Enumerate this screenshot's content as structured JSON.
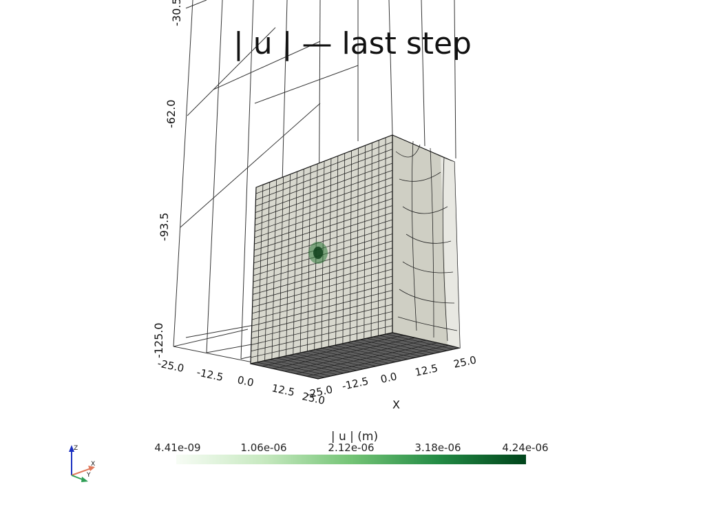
{
  "title": "| u |  — last step",
  "z_axis": {
    "ticks": [
      "-30.5",
      "-62.0",
      "-93.5",
      "-125.0"
    ]
  },
  "y_axis": {
    "ticks": [
      "-25.0",
      "-12.5",
      "0.0",
      "12.5",
      "25.0"
    ]
  },
  "x_axis": {
    "label": "X",
    "ticks": [
      "-25.0",
      "-12.5",
      "0.0",
      "12.5",
      "25.0"
    ]
  },
  "colorbar": {
    "title": "| u | (m)",
    "ticks": [
      "4.41e-09",
      "1.06e-06",
      "2.12e-06",
      "3.18e-06",
      "4.24e-06"
    ],
    "colormap": "Greens",
    "low_color": "#f7fcf5",
    "high_color": "#00441b"
  },
  "orientation_widget": {
    "x": "X",
    "y": "Y",
    "z": "Z"
  },
  "colors": {
    "mesh_face": "#d6d6cc",
    "mesh_line": "#1a1a1a",
    "hotspot": "#1f5f2a"
  }
}
